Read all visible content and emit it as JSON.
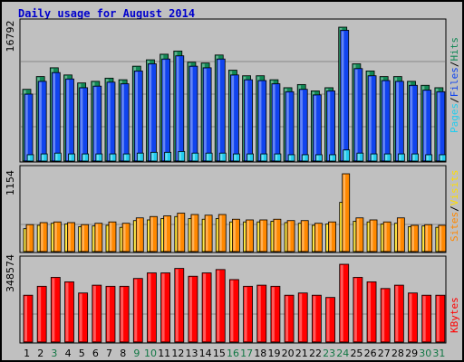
{
  "title": "Daily usage for August 2014",
  "colors": {
    "background": "#c0c0c0",
    "grid": "#888888",
    "pages": "#22ccee",
    "files": "#1144ee",
    "hits": "#118855",
    "visits": "#ffdd00",
    "sites": "#ff8800",
    "kbytes": "#ff0000",
    "weekday_label": "#000000",
    "weekend_label": "#117744"
  },
  "chart_data": [
    {
      "type": "bar",
      "id": "hits-files-pages",
      "ymax_label": "16792",
      "ylim": [
        0,
        16792
      ],
      "legend": [
        {
          "name": "Pages",
          "color": "#22ccee"
        },
        {
          "name": "Files",
          "color": "#1144ee"
        },
        {
          "name": "Hits",
          "color": "#118855"
        }
      ],
      "separator": "/",
      "categories": [
        "1",
        "2",
        "3",
        "4",
        "5",
        "6",
        "7",
        "8",
        "9",
        "10",
        "11",
        "12",
        "13",
        "14",
        "15",
        "16",
        "17",
        "18",
        "19",
        "20",
        "21",
        "22",
        "23",
        "24",
        "25",
        "26",
        "27",
        "28",
        "29",
        "30",
        "31"
      ],
      "series": [
        {
          "name": "Hits",
          "values": [
            9000,
            10600,
            11700,
            10800,
            9800,
            10000,
            10400,
            10200,
            11900,
            12700,
            13400,
            13800,
            12400,
            12300,
            13300,
            11400,
            10700,
            10700,
            10200,
            9200,
            9600,
            8800,
            9200,
            16792,
            12200,
            11300,
            10600,
            10600,
            10000,
            9500,
            9200
          ]
        },
        {
          "name": "Files",
          "values": [
            8400,
            10000,
            11100,
            10300,
            9200,
            9400,
            9900,
            9700,
            11300,
            12200,
            12800,
            13200,
            11900,
            11700,
            12800,
            10800,
            10200,
            10100,
            9700,
            8700,
            9000,
            8300,
            8800,
            16400,
            11600,
            10700,
            10100,
            10000,
            9500,
            8900,
            8700
          ]
        },
        {
          "name": "Pages",
          "values": [
            800,
            900,
            1000,
            900,
            900,
            900,
            900,
            900,
            1000,
            1100,
            1100,
            1200,
            1000,
            1000,
            1000,
            900,
            900,
            900,
            900,
            800,
            800,
            800,
            800,
            1400,
            1000,
            900,
            900,
            900,
            900,
            800,
            800
          ]
        }
      ]
    },
    {
      "type": "bar",
      "id": "visits-sites",
      "ymax_label": "1154",
      "ylim": [
        0,
        1154
      ],
      "legend": [
        {
          "name": "Sites",
          "color": "#ff8800"
        },
        {
          "name": "Visits",
          "color": "#ffdd00"
        }
      ],
      "separator": "/",
      "categories": [
        "1",
        "2",
        "3",
        "4",
        "5",
        "6",
        "7",
        "8",
        "9",
        "10",
        "11",
        "12",
        "13",
        "14",
        "15",
        "16",
        "17",
        "18",
        "19",
        "20",
        "21",
        "22",
        "23",
        "24",
        "25",
        "26",
        "27",
        "28",
        "29",
        "30",
        "31"
      ],
      "series": [
        {
          "name": "Sites",
          "values": [
            400,
            430,
            440,
            430,
            400,
            420,
            440,
            420,
            500,
            520,
            530,
            570,
            550,
            540,
            550,
            480,
            470,
            470,
            480,
            460,
            460,
            420,
            440,
            1154,
            500,
            470,
            440,
            500,
            390,
            400,
            390
          ]
        },
        {
          "name": "Visits",
          "values": [
            340,
            390,
            420,
            410,
            370,
            380,
            390,
            360,
            460,
            470,
            490,
            520,
            490,
            480,
            490,
            440,
            440,
            440,
            450,
            430,
            420,
            390,
            410,
            730,
            450,
            440,
            410,
            420,
            370,
            380,
            360
          ]
        }
      ]
    },
    {
      "type": "bar",
      "id": "kbytes",
      "ymax_label": "348574",
      "ylim": [
        0,
        348574
      ],
      "legend": [
        {
          "name": "KBytes",
          "color": "#ff0000"
        }
      ],
      "categories": [
        "1",
        "2",
        "3",
        "4",
        "5",
        "6",
        "7",
        "8",
        "9",
        "10",
        "11",
        "12",
        "13",
        "14",
        "15",
        "16",
        "17",
        "18",
        "19",
        "20",
        "21",
        "22",
        "23",
        "24",
        "25",
        "26",
        "27",
        "28",
        "29",
        "30",
        "31"
      ],
      "series": [
        {
          "name": "KBytes",
          "values": [
            210000,
            250000,
            290000,
            270000,
            220000,
            255000,
            250000,
            250000,
            285000,
            310000,
            310000,
            330000,
            295000,
            310000,
            325000,
            280000,
            250000,
            255000,
            250000,
            210000,
            220000,
            210000,
            200000,
            348574,
            290000,
            270000,
            240000,
            255000,
            220000,
            210000,
            210000
          ]
        }
      ]
    }
  ],
  "weekend_days": [
    3,
    9,
    10,
    16,
    17,
    23,
    24,
    30,
    31
  ]
}
